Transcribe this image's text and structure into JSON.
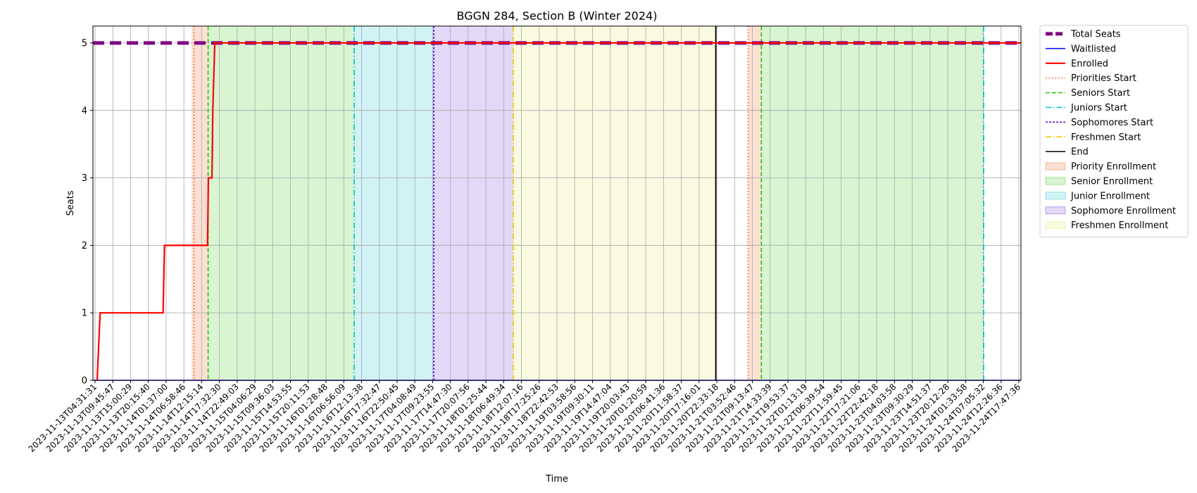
{
  "chart_data": {
    "type": "line",
    "title": "BGGN 284, Section B (Winter 2024)",
    "xlabel": "Time",
    "ylabel": "Seats",
    "ylim": [
      0,
      5.25
    ],
    "yticks": [
      0,
      1,
      2,
      3,
      4,
      5
    ],
    "grid": true,
    "legend_position": "outside-right",
    "xlim": [
      "2023-11-13T03:15",
      "2023-11-24T19:15"
    ],
    "xtick_labels": [
      "2023-11-13T04:31:31",
      "2023-11-13T09:45:47",
      "2023-11-13T15:00:29",
      "2023-11-13T20:15:40",
      "2023-11-14T01:37:00",
      "2023-11-14T06:58:46",
      "2023-11-14T12:15:14",
      "2023-11-14T17:32:30",
      "2023-11-14T22:49:03",
      "2023-11-15T04:06:29",
      "2023-11-15T09:36:03",
      "2023-11-15T14:53:55",
      "2023-11-15T20:11:53",
      "2023-11-16T01:28:48",
      "2023-11-16T06:56:09",
      "2023-11-16T12:13:38",
      "2023-11-16T17:32:47",
      "2023-11-16T22:50:45",
      "2023-11-17T04:08:49",
      "2023-11-17T09:23:55",
      "2023-11-17T14:47:30",
      "2023-11-17T20:07:56",
      "2023-11-18T01:25:44",
      "2023-11-18T06:49:34",
      "2023-11-18T12:07:16",
      "2023-11-18T17:25:26",
      "2023-11-18T22:42:53",
      "2023-11-19T03:58:56",
      "2023-11-19T09:30:11",
      "2023-11-19T14:47:04",
      "2023-11-19T20:03:43",
      "2023-11-20T01:20:59",
      "2023-11-20T06:41:36",
      "2023-11-20T11:58:37",
      "2023-11-20T17:16:01",
      "2023-11-20T22:33:18",
      "2023-11-21T03:52:46",
      "2023-11-21T09:13:47",
      "2023-11-21T14:33:39",
      "2023-11-21T19:53:37",
      "2023-11-22T01:13:19",
      "2023-11-22T06:39:54",
      "2023-11-22T11:59:45",
      "2023-11-22T17:21:06",
      "2023-11-22T22:42:18",
      "2023-11-23T04:03:58",
      "2023-11-23T09:30:29",
      "2023-11-23T14:51:37",
      "2023-11-23T20:12:28",
      "2023-11-24T01:33:58",
      "2023-11-24T07:05:32",
      "2023-11-24T12:26:36",
      "2023-11-24T17:47:36"
    ],
    "series": [
      {
        "name": "Total Seats",
        "color": "#800080",
        "style": "dashed-thick",
        "points": [
          [
            "2023-11-13T03:15",
            5
          ],
          [
            "2023-11-24T19:15",
            5
          ]
        ]
      },
      {
        "name": "Waitlisted",
        "color": "#0000ff",
        "style": "solid",
        "points": [
          [
            "2023-11-13T03:15",
            0
          ],
          [
            "2023-11-24T19:15",
            0
          ]
        ]
      },
      {
        "name": "Enrolled",
        "color": "#ff0000",
        "style": "solid",
        "points": [
          [
            "2023-11-13T04:31",
            0
          ],
          [
            "2023-11-13T05:25",
            1
          ],
          [
            "2023-11-14T00:25",
            1
          ],
          [
            "2023-11-14T00:50",
            2
          ],
          [
            "2023-11-14T13:50",
            2
          ],
          [
            "2023-11-14T14:05",
            3
          ],
          [
            "2023-11-14T15:10",
            3
          ],
          [
            "2023-11-14T15:25",
            4
          ],
          [
            "2023-11-14T16:00",
            5
          ],
          [
            "2023-11-24T19:15",
            5
          ]
        ]
      }
    ],
    "phase_lines": [
      {
        "name": "Priorities Start",
        "color": "#ff4d2e",
        "style": "dotted",
        "x": "2023-11-14T09:45"
      },
      {
        "name": "Seniors Start",
        "color": "#22cc00",
        "style": "dashed",
        "x": "2023-11-14T14:00"
      },
      {
        "name": "Juniors Start",
        "color": "#00bfc8",
        "style": "dashdot",
        "x": "2023-11-16T10:05"
      },
      {
        "name": "Sophomores Start",
        "color": "#5a00d6",
        "style": "densely-dashed",
        "x": "2023-11-17T10:05"
      },
      {
        "name": "Freshmen Start",
        "color": "#e6c800",
        "style": "dashdot",
        "x": "2023-11-18T10:05"
      },
      {
        "name": "End",
        "color": "#000000",
        "style": "solid",
        "x": "2023-11-20T23:10"
      },
      {
        "name": "Priorities Start",
        "color": "#ff4d2e",
        "style": "dotted",
        "x": "2023-11-21T08:55",
        "legend": false
      },
      {
        "name": "Seniors Start",
        "color": "#22cc00",
        "style": "dashed",
        "x": "2023-11-21T12:55",
        "legend": false
      },
      {
        "name": "Juniors Start",
        "color": "#00bfc8",
        "style": "dashdot",
        "x": "2023-11-24T08:00",
        "legend": false
      }
    ],
    "phase_bands": [
      {
        "name": "Priority Enrollment",
        "color": "#f4a582",
        "from": "2023-11-14T09:00",
        "to": "2023-11-14T14:00"
      },
      {
        "name": "Senior Enrollment",
        "color": "#8ee07a",
        "from": "2023-11-14T14:00",
        "to": "2023-11-16T10:05"
      },
      {
        "name": "Junior Enrollment",
        "color": "#7fdde6",
        "from": "2023-11-16T10:05",
        "to": "2023-11-17T10:05"
      },
      {
        "name": "Sophomore Enrollment",
        "color": "#b08ee8",
        "from": "2023-11-17T10:05",
        "to": "2023-11-18T10:05"
      },
      {
        "name": "Freshmen Enrollment",
        "color": "#f0f0a8",
        "from": "2023-11-18T10:05",
        "to": "2023-11-20T23:10"
      },
      {
        "name": "Priority Enrollment",
        "color": "#f4a582",
        "from": "2023-11-21T08:55",
        "to": "2023-11-21T12:55",
        "legend": false
      },
      {
        "name": "Senior Enrollment",
        "color": "#8ee07a",
        "from": "2023-11-21T12:55",
        "to": "2023-11-24T08:00",
        "legend": false
      }
    ]
  }
}
